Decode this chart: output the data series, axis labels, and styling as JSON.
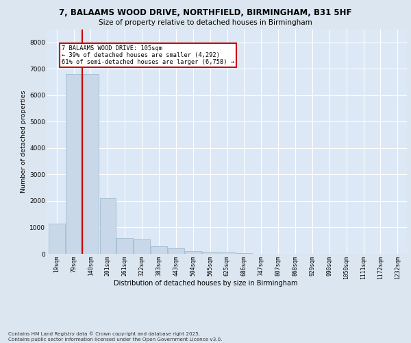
{
  "title_line1": "7, BALAAMS WOOD DRIVE, NORTHFIELD, BIRMINGHAM, B31 5HF",
  "title_line2": "Size of property relative to detached houses in Birmingham",
  "xlabel": "Distribution of detached houses by size in Birmingham",
  "ylabel": "Number of detached properties",
  "categories": [
    "19sqm",
    "79sqm",
    "140sqm",
    "201sqm",
    "261sqm",
    "322sqm",
    "383sqm",
    "443sqm",
    "504sqm",
    "565sqm",
    "625sqm",
    "686sqm",
    "747sqm",
    "807sqm",
    "868sqm",
    "929sqm",
    "990sqm",
    "1050sqm",
    "1111sqm",
    "1172sqm",
    "1232sqm"
  ],
  "values": [
    1150,
    6800,
    6800,
    2100,
    600,
    540,
    280,
    200,
    110,
    80,
    50,
    20,
    10,
    5,
    3,
    2,
    1,
    1,
    0,
    0,
    0
  ],
  "bar_color": "#c8d8e8",
  "bar_edge_color": "#a0bcd0",
  "vline_color": "#cc0000",
  "annotation_text": "7 BALAAMS WOOD DRIVE: 105sqm\n← 39% of detached houses are smaller (4,292)\n61% of semi-detached houses are larger (6,758) →",
  "annotation_box_color": "#ffffff",
  "annotation_box_edge": "#cc0000",
  "footnote": "Contains HM Land Registry data © Crown copyright and database right 2025.\nContains public sector information licensed under the Open Government Licence v3.0.",
  "ylim": [
    0,
    8500
  ],
  "yticks": [
    0,
    1000,
    2000,
    3000,
    4000,
    5000,
    6000,
    7000,
    8000
  ],
  "bg_color": "#dce6f0",
  "plot_bg_color": "#dce8f5"
}
